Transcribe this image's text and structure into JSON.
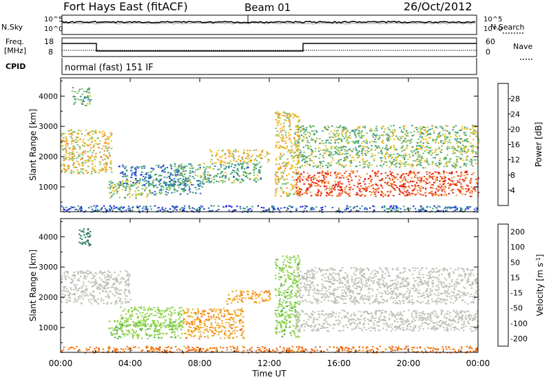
{
  "header": {
    "title": "Fort Hays East (fitACF)",
    "beam": "Beam 01",
    "date": "26/Oct/2012"
  },
  "strip_panels": {
    "nsky_label": "N.Sky",
    "nsearch_label": "N.Search",
    "nsky_ticks": [
      "10^5",
      "10^0"
    ],
    "freq_label_line1": "Freq.",
    "freq_label_line2": "[MHz]",
    "freq_ticks": [
      "18",
      "8"
    ],
    "nave_label": "Nave",
    "nave_ticks": [
      "60",
      "0"
    ],
    "cpid_label": "CPID",
    "cpid_text": "normal (fast) 151 IF"
  },
  "chart_data": [
    {
      "type": "heatmap",
      "name": "power",
      "ylabel": "Slant Range [km]",
      "xlabel": "",
      "xlim": [
        0,
        24
      ],
      "ylim": [
        180,
        4600
      ],
      "y_ticks": [
        1000,
        2000,
        3000,
        4000
      ],
      "x_ticks": [
        "00:00",
        "04:00",
        "08:00",
        "12:00",
        "16:00",
        "20:00",
        "00:00"
      ],
      "colorbar": {
        "label": "Power [dB]",
        "range": [
          0,
          32
        ],
        "ticks": [
          4,
          8,
          12,
          16,
          20,
          24,
          28
        ],
        "colors": [
          "#2020e0",
          "#2e64c8",
          "#3a9a82",
          "#7abf6a",
          "#f0c020",
          "#f59030",
          "#ec4a1e",
          "#e01010"
        ]
      },
      "regions": [
        {
          "t0": 0.0,
          "t1": 2.9,
          "r0": 1450,
          "r1": 2900,
          "value": 18
        },
        {
          "t0": 0.6,
          "t1": 1.7,
          "r0": 3700,
          "r1": 4300,
          "value": 12
        },
        {
          "t0": 2.7,
          "t1": 5.2,
          "r0": 650,
          "r1": 1250,
          "value": 14
        },
        {
          "t0": 3.3,
          "t1": 7.2,
          "r0": 1050,
          "r1": 1750,
          "value": 8
        },
        {
          "t0": 5.0,
          "t1": 8.2,
          "r0": 750,
          "r1": 1250,
          "value": 10
        },
        {
          "t0": 6.5,
          "t1": 11.5,
          "r0": 1150,
          "r1": 1800,
          "value": 12
        },
        {
          "t0": 8.5,
          "t1": 12.0,
          "r0": 1800,
          "r1": 2250,
          "value": 18
        },
        {
          "t0": 12.3,
          "t1": 13.7,
          "r0": 700,
          "r1": 3500,
          "value": 18
        },
        {
          "t0": 13.5,
          "t1": 24.0,
          "r0": 700,
          "r1": 1550,
          "value": 26
        },
        {
          "t0": 13.5,
          "t1": 24.0,
          "r0": 1650,
          "r1": 2400,
          "value": 14
        },
        {
          "t0": 13.5,
          "t1": 24.0,
          "r0": 2450,
          "r1": 3050,
          "value": 14
        },
        {
          "t0": 0.0,
          "t1": 24.0,
          "r0": 180,
          "r1": 400,
          "value": 6
        }
      ]
    },
    {
      "type": "heatmap",
      "name": "velocity",
      "ylabel": "Slant Range [km]",
      "xlabel": "Time UT",
      "xlim": [
        0,
        24
      ],
      "ylim": [
        180,
        4600
      ],
      "y_ticks": [
        1000,
        2000,
        3000,
        4000
      ],
      "x_ticks": [
        "00:00",
        "04:00",
        "08:00",
        "12:00",
        "16:00",
        "20:00",
        "00:00"
      ],
      "colorbar": {
        "label": "Velocity [m s^-1]",
        "tick_labels": [
          "200",
          "100",
          "50",
          "15",
          "-15",
          "-50",
          "-100",
          "-200"
        ],
        "colors": [
          "#2030c8",
          "#2e7a5e",
          "#3fa93a",
          "#8ed24a",
          "#c0c0b8",
          "#f0a820",
          "#f26a10",
          "#e01010"
        ]
      },
      "regions": [
        {
          "t0": 0.0,
          "t1": 4.0,
          "r0": 1800,
          "r1": 2900,
          "value": 0
        },
        {
          "t0": 1.0,
          "t1": 1.7,
          "r0": 3700,
          "r1": 4300,
          "value": 150
        },
        {
          "t0": 2.7,
          "t1": 7.0,
          "r0": 650,
          "r1": 1250,
          "value": 40
        },
        {
          "t0": 3.3,
          "t1": 7.0,
          "r0": 1050,
          "r1": 1700,
          "value": 30
        },
        {
          "t0": 7.0,
          "t1": 10.5,
          "r0": 650,
          "r1": 1650,
          "value": -40
        },
        {
          "t0": 9.5,
          "t1": 12.0,
          "r0": 1800,
          "r1": 2250,
          "value": -40
        },
        {
          "t0": 12.3,
          "t1": 13.7,
          "r0": 700,
          "r1": 3400,
          "value": 40
        },
        {
          "t0": 13.5,
          "t1": 24.0,
          "r0": 900,
          "r1": 1600,
          "value": 0
        },
        {
          "t0": 13.5,
          "t1": 24.0,
          "r0": 1800,
          "r1": 2400,
          "value": 0
        },
        {
          "t0": 13.5,
          "t1": 24.0,
          "r0": 2400,
          "r1": 3000,
          "value": 0
        },
        {
          "t0": 0.0,
          "t1": 24.0,
          "r0": 180,
          "r1": 400,
          "value": -60
        }
      ]
    }
  ]
}
